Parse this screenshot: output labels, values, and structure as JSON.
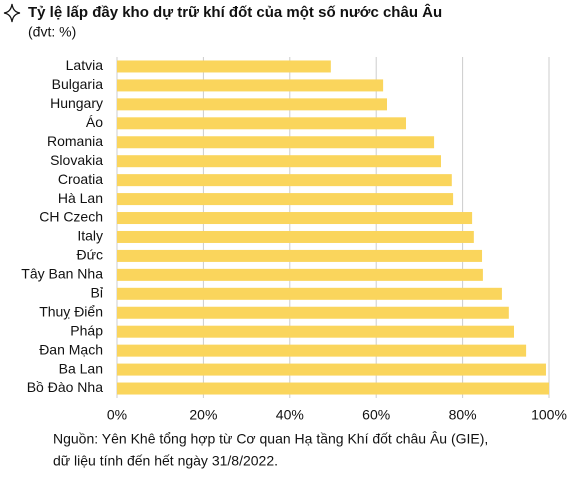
{
  "chart_data": {
    "type": "bar",
    "orientation": "horizontal",
    "title": "Tỷ lệ lấp đầy kho dự trữ khí đốt của một số nước châu Âu",
    "subtitle": "(đvt: %)",
    "source": [
      "Nguồn: Yên Khê tổng hợp từ Cơ quan Hạ tầng Khí đốt châu Âu (GIE),",
      "dữ liệu tính đến hết ngày 31/8/2022."
    ],
    "categories": [
      "Latvia",
      "Bulgaria",
      "Hungary",
      "Áo",
      "Romania",
      "Slovakia",
      "Croatia",
      "Hà Lan",
      "CH Czech",
      "Italy",
      "Đức",
      "Tây Ban Nha",
      "Bỉ",
      "Thuỵ Điển",
      "Pháp",
      "Đan Mạch",
      "Ba Lan",
      "Bồ Đào Nha"
    ],
    "values": [
      49.5,
      61.6,
      62.5,
      66.9,
      73.4,
      75,
      77.5,
      77.8,
      82.2,
      82.6,
      84.5,
      84.7,
      89.1,
      90.7,
      91.9,
      94.7,
      99.3,
      100
    ],
    "color": "#fad55c",
    "xlim": [
      0,
      100
    ],
    "xticks": [
      {
        "value": 0,
        "label": "0%"
      },
      {
        "value": 20,
        "label": "20%"
      },
      {
        "value": 40,
        "label": "40%"
      },
      {
        "value": 60,
        "label": "60%"
      },
      {
        "value": 80,
        "label": "80%"
      },
      {
        "value": 100,
        "label": "100%"
      }
    ],
    "grid": true
  }
}
